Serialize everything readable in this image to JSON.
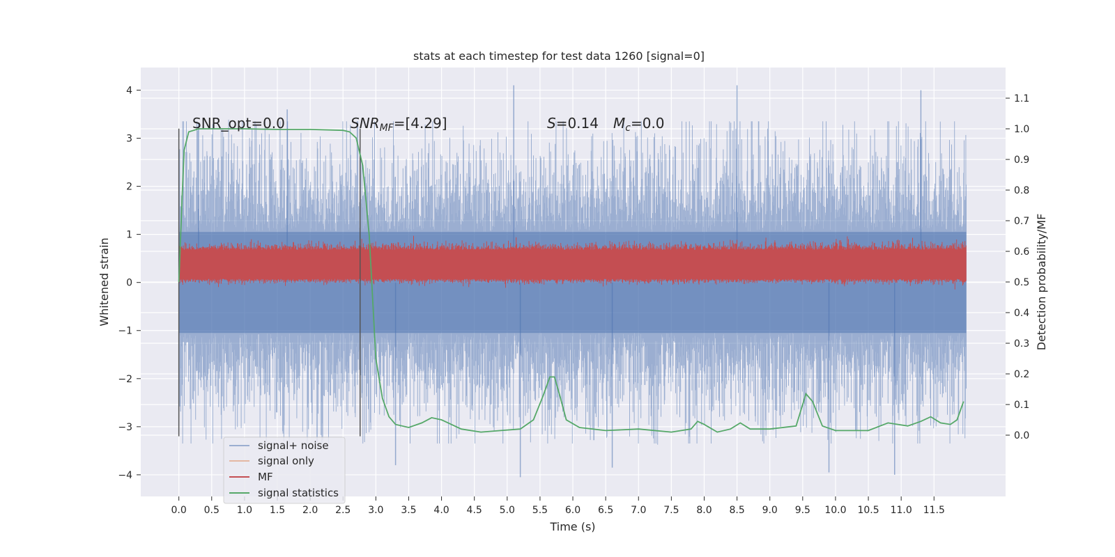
{
  "chart_data": {
    "type": "line",
    "title": "stats at each timestep for test data 1260 [signal=0]",
    "xlabel": "Time (s)",
    "ylabel": "Whitened strain",
    "ylabel_right": "Detection probability/MF",
    "xlim": [
      -0.58,
      12.59
    ],
    "ylim": [
      -4.45,
      4.47
    ],
    "ylim_right": [
      -0.2,
      1.2
    ],
    "x_ticks": [
      "0.0",
      "0.5",
      "1.0",
      "1.5",
      "2.0",
      "2.5",
      "3.0",
      "3.5",
      "4.0",
      "4.5",
      "5.0",
      "5.5",
      "6.0",
      "6.5",
      "7.0",
      "7.5",
      "8.0",
      "8.5",
      "9.0",
      "9.5",
      "10.0",
      "10.5",
      "11.0",
      "11.5"
    ],
    "y_ticks": [
      "4",
      "3",
      "2",
      "1",
      "0",
      "−1",
      "−2",
      "−3",
      "−4"
    ],
    "y_ticks_right": [
      "1.1",
      "1.0",
      "0.9",
      "0.8",
      "0.7",
      "0.6",
      "0.5",
      "0.4",
      "0.3",
      "0.2",
      "0.1",
      "0.0"
    ],
    "annotations": {
      "snr_opt": "SNR_opt=0.0",
      "snr_mf_name": "SNR",
      "snr_mf_sub": "MF",
      "snr_mf_value": "=[4.29]",
      "s_name": "S",
      "s_value": "=0.14",
      "mc_name": "M",
      "mc_sub": "c",
      "mc_value": "=0.0"
    },
    "vertical_markers_x": [
      0.0,
      2.76
    ],
    "vertical_markers_yrange": [
      -3.2,
      3.2
    ],
    "grid": true,
    "legend_position": "lower-left",
    "series": [
      {
        "name": "signal+ noise",
        "color": "#4c72b0",
        "axis": "left",
        "x_range": [
          0.0,
          11.99
        ],
        "typical_abs": 2.0,
        "extremes": [
          [
            0.3,
            3.3
          ],
          [
            1.65,
            3.6
          ],
          [
            5.1,
            4.1
          ],
          [
            5.2,
            -4.05
          ],
          [
            8.5,
            4.1
          ],
          [
            9.9,
            -3.95
          ],
          [
            11.3,
            4.0
          ],
          [
            10.9,
            -4.0
          ],
          [
            3.3,
            -3.8
          ],
          [
            6.6,
            -3.85
          ]
        ]
      },
      {
        "name": "signal only",
        "color": "#dd8452",
        "axis": "left",
        "values": []
      },
      {
        "name": "MF",
        "color": "#c44e52",
        "axis": "right",
        "x_range": [
          0.0,
          11.99
        ],
        "band": [
          0.5,
          0.62
        ],
        "max": 0.65
      },
      {
        "name": "signal statistics",
        "color": "#55a868",
        "axis": "right",
        "points": [
          [
            0.0,
            0.5
          ],
          [
            0.05,
            0.78
          ],
          [
            0.08,
            0.93
          ],
          [
            0.15,
            0.99
          ],
          [
            0.3,
            1.0
          ],
          [
            1.0,
            1.0
          ],
          [
            1.5,
            0.998
          ],
          [
            2.0,
            0.998
          ],
          [
            2.5,
            0.995
          ],
          [
            2.6,
            0.99
          ],
          [
            2.7,
            0.97
          ],
          [
            2.8,
            0.88
          ],
          [
            2.9,
            0.65
          ],
          [
            2.95,
            0.45
          ],
          [
            3.0,
            0.25
          ],
          [
            3.1,
            0.12
          ],
          [
            3.2,
            0.06
          ],
          [
            3.3,
            0.035
          ],
          [
            3.5,
            0.025
          ],
          [
            3.7,
            0.04
          ],
          [
            3.85,
            0.057
          ],
          [
            4.0,
            0.05
          ],
          [
            4.3,
            0.02
          ],
          [
            4.6,
            0.01
          ],
          [
            4.9,
            0.015
          ],
          [
            5.2,
            0.02
          ],
          [
            5.4,
            0.05
          ],
          [
            5.55,
            0.13
          ],
          [
            5.65,
            0.19
          ],
          [
            5.72,
            0.19
          ],
          [
            5.8,
            0.13
          ],
          [
            5.9,
            0.05
          ],
          [
            6.1,
            0.025
          ],
          [
            6.5,
            0.015
          ],
          [
            7.0,
            0.02
          ],
          [
            7.5,
            0.01
          ],
          [
            7.8,
            0.02
          ],
          [
            7.9,
            0.045
          ],
          [
            8.0,
            0.035
          ],
          [
            8.2,
            0.01
          ],
          [
            8.4,
            0.02
          ],
          [
            8.55,
            0.04
          ],
          [
            8.7,
            0.02
          ],
          [
            9.0,
            0.02
          ],
          [
            9.4,
            0.03
          ],
          [
            9.5,
            0.1
          ],
          [
            9.55,
            0.135
          ],
          [
            9.65,
            0.11
          ],
          [
            9.8,
            0.03
          ],
          [
            10.0,
            0.015
          ],
          [
            10.5,
            0.015
          ],
          [
            10.8,
            0.04
          ],
          [
            11.1,
            0.03
          ],
          [
            11.3,
            0.045
          ],
          [
            11.45,
            0.06
          ],
          [
            11.6,
            0.04
          ],
          [
            11.75,
            0.035
          ],
          [
            11.85,
            0.05
          ],
          [
            11.9,
            0.08
          ],
          [
            11.95,
            0.11
          ]
        ]
      }
    ]
  }
}
